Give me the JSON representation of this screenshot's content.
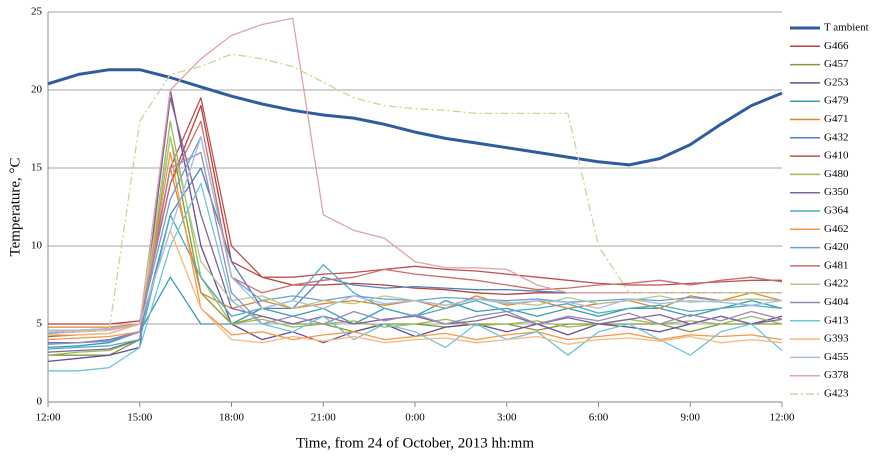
{
  "chart_data": {
    "type": "line",
    "xlabel": "Time, from 24 of October, 2013 hh:mm",
    "ylabel": "Temperature, °C",
    "x": [
      0,
      1,
      2,
      3,
      4,
      5,
      6,
      7,
      8,
      9,
      10,
      11,
      12,
      13,
      14,
      15,
      16,
      17,
      18,
      19,
      20,
      21,
      22,
      23,
      24
    ],
    "xlim": [
      0,
      24
    ],
    "xticks": [
      {
        "value": 0,
        "label": "12:00"
      },
      {
        "value": 3,
        "label": "15:00"
      },
      {
        "value": 6,
        "label": "18:00"
      },
      {
        "value": 9,
        "label": "21:00"
      },
      {
        "value": 12,
        "label": "0:00"
      },
      {
        "value": 15,
        "label": "3:00"
      },
      {
        "value": 18,
        "label": "6:00"
      },
      {
        "value": 21,
        "label": "9:00"
      },
      {
        "value": 24,
        "label": "12:00"
      }
    ],
    "ylim": [
      0,
      25
    ],
    "yticks": [
      0,
      5,
      10,
      15,
      20,
      25
    ],
    "grid": true,
    "legend": "right",
    "series": [
      {
        "name": "T ambient",
        "color": "#2f5c9c",
        "line_width": 3,
        "values": [
          20.4,
          21,
          21.3,
          21.3,
          20.8,
          20.2,
          19.6,
          19.1,
          18.7,
          18.4,
          18.2,
          17.8,
          17.3,
          16.9,
          16.6,
          16.3,
          16.0,
          15.7,
          15.4,
          15.2,
          15.6,
          16.5,
          17.8,
          19.0,
          19.8
        ]
      },
      {
        "name": "G466",
        "color": "#b8403c",
        "values": [
          5,
          5,
          5,
          5.2,
          14,
          19,
          9,
          8,
          7.5,
          7.5,
          7.6,
          7.5,
          7.3,
          7.2,
          7,
          6.9,
          7,
          7,
          7,
          7,
          7,
          7,
          7,
          7,
          7
        ]
      },
      {
        "name": "G457",
        "color": "#7f9a3a",
        "values": [
          3,
          3,
          3,
          4,
          17,
          7,
          5,
          5.5,
          5,
          5,
          4.5,
          5,
          5,
          4.8,
          5,
          5,
          4.6,
          5,
          5,
          5,
          5,
          4.5,
          5,
          5,
          5
        ]
      },
      {
        "name": "G253",
        "color": "#6a4c93",
        "values": [
          2.6,
          2.8,
          3,
          3.5,
          20,
          10,
          5,
          4,
          4.5,
          3.8,
          4.5,
          5,
          4.2,
          4.8,
          5,
          4.5,
          5,
          4.3,
          5,
          4.8,
          4.5,
          5,
          5.5,
          5,
          5.5
        ]
      },
      {
        "name": "G479",
        "color": "#3a9bb3",
        "values": [
          3.5,
          3.6,
          3.8,
          4.5,
          8,
          5,
          5,
          6,
          5.5,
          6,
          5,
          6,
          5.5,
          6.5,
          5.8,
          6,
          5.5,
          6,
          5.5,
          6,
          6,
          5.5,
          6,
          6.5,
          6
        ]
      },
      {
        "name": "G471",
        "color": "#e2862e",
        "values": [
          4.8,
          4.8,
          4.8,
          5,
          15,
          7,
          6,
          6.5,
          6,
          6.3,
          6.5,
          6.2,
          6.5,
          6,
          6.8,
          6.2,
          6.5,
          6,
          6.3,
          6.5,
          6,
          6.8,
          6.5,
          7,
          6.5
        ]
      },
      {
        "name": "G432",
        "color": "#4f81bd",
        "values": [
          3.8,
          3.8,
          4,
          4.5,
          12,
          15,
          9,
          6,
          6,
          8,
          7.5,
          7.3,
          7.4,
          7.3,
          7.2,
          7.2,
          7.1,
          7,
          7,
          7,
          7,
          7,
          7,
          7,
          7
        ]
      },
      {
        "name": "G410",
        "color": "#c0504d",
        "values": [
          4.2,
          4.3,
          4.4,
          5,
          15,
          19.5,
          10,
          8,
          8,
          8.2,
          8.3,
          8.5,
          8.7,
          8.5,
          8.4,
          8.2,
          8,
          7.8,
          7.6,
          7.5,
          7.5,
          7.6,
          7.7,
          7.8,
          7.8
        ]
      },
      {
        "name": "G480",
        "color": "#9bbb59",
        "values": [
          3,
          3.2,
          3.3,
          4,
          18,
          8,
          5,
          5.3,
          4.8,
          5,
          5.2,
          4.8,
          5,
          5.3,
          4.9,
          5,
          5.2,
          4.8,
          5,
          5.3,
          5,
          5.2,
          5,
          5.5,
          5
        ]
      },
      {
        "name": "G350",
        "color": "#8064a2",
        "values": [
          3.2,
          3.3,
          3.4,
          4,
          19.5,
          12,
          6,
          5.5,
          5,
          5.5,
          5,
          5.3,
          5.5,
          5,
          5.2,
          5.6,
          5,
          5.4,
          5,
          5.3,
          5.6,
          5,
          5.5,
          5,
          5.3
        ]
      },
      {
        "name": "G364",
        "color": "#4bacc6",
        "values": [
          3.4,
          3.5,
          3.6,
          4,
          12,
          8,
          5.5,
          6,
          6.5,
          8.8,
          7,
          6,
          5.5,
          6,
          6.5,
          5.8,
          6,
          6.3,
          5.7,
          6,
          6.2,
          5.8,
          6,
          6.2,
          6
        ]
      },
      {
        "name": "G462",
        "color": "#f79646",
        "values": [
          4,
          4.1,
          4.2,
          4.5,
          16,
          6,
          4.3,
          4.5,
          4,
          4.3,
          4.5,
          4,
          4.2,
          4.4,
          4,
          4.3,
          4.5,
          4,
          4.2,
          4.4,
          4,
          4.3,
          4.2,
          4.3,
          4
        ]
      },
      {
        "name": "G420",
        "color": "#6a9fd6",
        "values": [
          4.4,
          4.5,
          4.6,
          5,
          13,
          17,
          8,
          6.5,
          6.8,
          6.5,
          6.8,
          6.6,
          6.5,
          6.7,
          6.6,
          6.5,
          6.6,
          6.4,
          6.5,
          6.6,
          6.5,
          6.7,
          6.5,
          6.6,
          6.5
        ]
      },
      {
        "name": "G481",
        "color": "#cc6d6a",
        "values": [
          4.6,
          4.6,
          4.7,
          5,
          14,
          18,
          8,
          7,
          7.5,
          7.8,
          8,
          8.5,
          8.2,
          8,
          7.8,
          7.5,
          7.2,
          7.3,
          7.5,
          7.6,
          7.8,
          7.5,
          7.8,
          8,
          7.7
        ]
      },
      {
        "name": "G422",
        "color": "#b5ca8a",
        "values": [
          4.5,
          4.5,
          4.6,
          5,
          17,
          9,
          6.5,
          6.8,
          6,
          6.5,
          6.3,
          6.8,
          6.5,
          6.2,
          6.6,
          6.4,
          6.2,
          6.7,
          6.3,
          6.5,
          6.8,
          6.4,
          6.5,
          6.6,
          6.5
        ]
      },
      {
        "name": "G404",
        "color": "#9b8ab8",
        "values": [
          3.7,
          3.8,
          3.9,
          4.5,
          15,
          16,
          7,
          5,
          5.5,
          5,
          5.8,
          5.2,
          5.6,
          5,
          5.5,
          5.8,
          5,
          5.5,
          5.2,
          5.7,
          5,
          5.6,
          5.2,
          5.8,
          5.3
        ]
      },
      {
        "name": "G413",
        "color": "#6fc5d8",
        "values": [
          2,
          2,
          2.2,
          3.5,
          10,
          14,
          6.5,
          5,
          4.5,
          5.5,
          4,
          5,
          4.5,
          3.5,
          5,
          4,
          4.5,
          3,
          4.5,
          5,
          4,
          3,
          4.5,
          5,
          3.3
        ]
      },
      {
        "name": "G393",
        "color": "#fab77c",
        "values": [
          4.3,
          4.3,
          4.4,
          5,
          11,
          6,
          4,
          3.8,
          4.2,
          3.9,
          4.2,
          3.8,
          4,
          4.1,
          3.8,
          4,
          4.2,
          3.7,
          4,
          4.1,
          3.9,
          4.2,
          3.8,
          4,
          3.8
        ]
      },
      {
        "name": "G455",
        "color": "#a9bde0",
        "values": [
          4.6,
          4.6,
          4.7,
          5,
          11,
          17,
          8,
          6,
          6.5,
          6,
          6.8,
          6.3,
          6.5,
          6.2,
          6.6,
          6.3,
          6.5,
          6.4,
          6,
          6.6,
          6.3,
          6.5,
          6.4,
          6.2,
          6.5
        ]
      },
      {
        "name": "G378",
        "color": "#e0a4a4",
        "values": [
          4.5,
          4.5,
          4.6,
          5,
          20,
          22,
          23.5,
          24.2,
          24.6,
          12,
          11,
          10.5,
          9,
          8.6,
          8.6,
          8.5,
          7.5,
          7,
          7,
          7,
          7,
          7,
          7,
          7,
          7
        ]
      },
      {
        "name": "G423",
        "color": "#c4d79b",
        "line_style": "dashdot",
        "values": [
          4.5,
          4.5,
          4.6,
          18,
          21,
          21.5,
          22.3,
          22,
          21.5,
          20.5,
          19.5,
          19,
          18.8,
          18.7,
          18.5,
          18.5,
          18.5,
          18.5,
          10,
          7,
          7,
          7,
          7,
          7,
          7
        ]
      }
    ]
  }
}
